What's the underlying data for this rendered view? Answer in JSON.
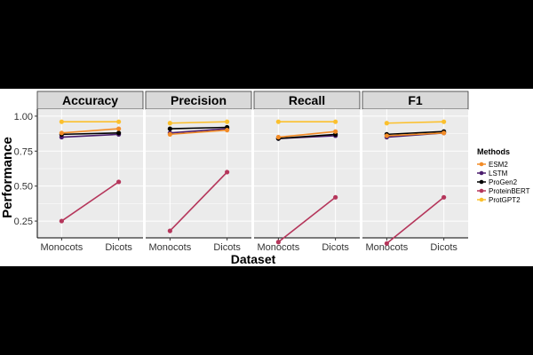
{
  "chart_data": {
    "type": "line",
    "ylabel": "Performance",
    "xlabel": "Dataset",
    "categories": [
      "Monocots",
      "Dicots"
    ],
    "ylim": [
      0.13,
      1.05
    ],
    "yticks": [
      0.25,
      0.5,
      0.75,
      1.0
    ],
    "ytick_labels": [
      "0.25",
      "0.50",
      "0.75",
      "1.00"
    ],
    "legend": {
      "title": "Methods",
      "position": "right",
      "entries": [
        {
          "name": "ESM2",
          "color": "#f28c28"
        },
        {
          "name": "LSTM",
          "color": "#4b1d6e"
        },
        {
          "name": "ProGen2",
          "color": "#000000"
        },
        {
          "name": "ProteinBERT",
          "color": "#b5365b"
        },
        {
          "name": "ProtGPT2",
          "color": "#fbc02d"
        }
      ]
    },
    "panels": [
      {
        "title": "Accuracy",
        "series": [
          {
            "name": "ProteinBERT",
            "values": [
              0.25,
              0.53
            ]
          },
          {
            "name": "LSTM",
            "values": [
              0.85,
              0.87
            ]
          },
          {
            "name": "ProGen2",
            "values": [
              0.87,
              0.88
            ]
          },
          {
            "name": "ESM2",
            "values": [
              0.88,
              0.91
            ]
          },
          {
            "name": "ProtGPT2",
            "values": [
              0.96,
              0.96
            ]
          }
        ]
      },
      {
        "title": "Precision",
        "series": [
          {
            "name": "ProteinBERT",
            "values": [
              0.18,
              0.6
            ]
          },
          {
            "name": "LSTM",
            "values": [
              0.88,
              0.91
            ]
          },
          {
            "name": "ProGen2",
            "values": [
              0.91,
              0.92
            ]
          },
          {
            "name": "ESM2",
            "values": [
              0.87,
              0.9
            ]
          },
          {
            "name": "ProtGPT2",
            "values": [
              0.95,
              0.96
            ]
          }
        ]
      },
      {
        "title": "Recall",
        "series": [
          {
            "name": "ProteinBERT",
            "values": [
              0.1,
              0.42
            ]
          },
          {
            "name": "LSTM",
            "values": [
              0.84,
              0.86
            ]
          },
          {
            "name": "ProGen2",
            "values": [
              0.84,
              0.87
            ]
          },
          {
            "name": "ESM2",
            "values": [
              0.85,
              0.89
            ]
          },
          {
            "name": "ProtGPT2",
            "values": [
              0.96,
              0.96
            ]
          }
        ]
      },
      {
        "title": "F1",
        "series": [
          {
            "name": "ProteinBERT",
            "values": [
              0.09,
              0.42
            ]
          },
          {
            "name": "LSTM",
            "values": [
              0.85,
              0.88
            ]
          },
          {
            "name": "ProGen2",
            "values": [
              0.87,
              0.89
            ]
          },
          {
            "name": "ESM2",
            "values": [
              0.86,
              0.88
            ]
          },
          {
            "name": "ProtGPT2",
            "values": [
              0.95,
              0.96
            ]
          }
        ]
      }
    ]
  }
}
